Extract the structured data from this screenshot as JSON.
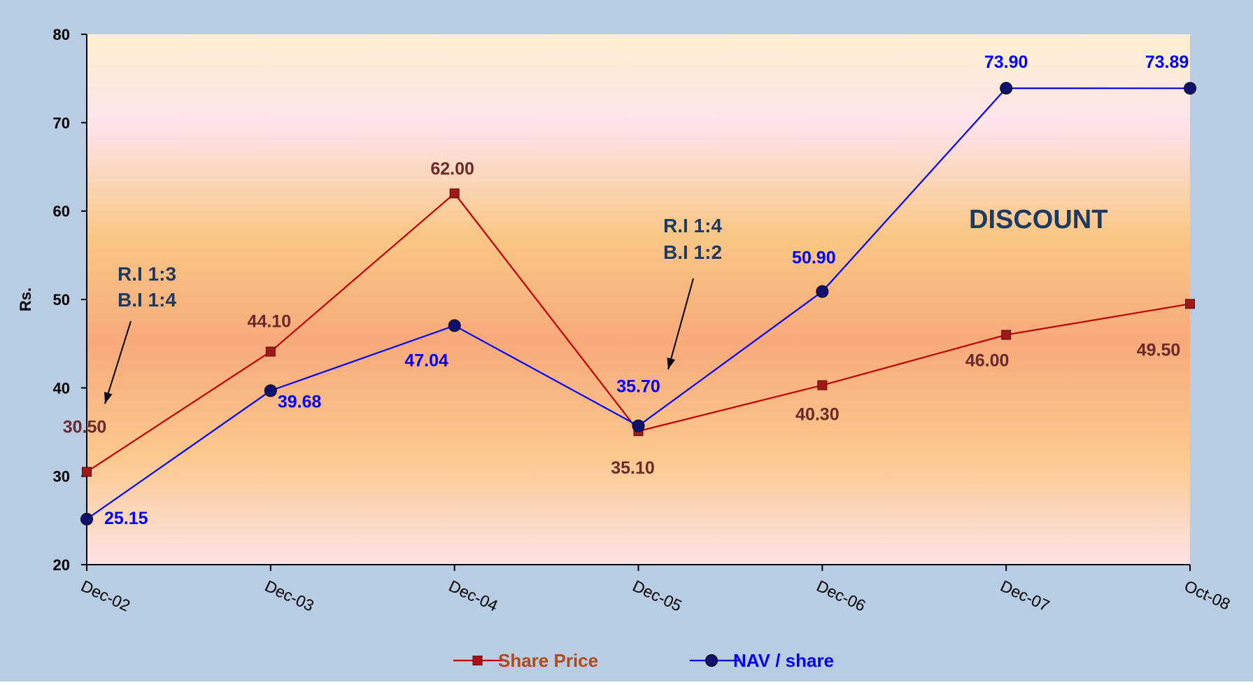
{
  "chart_data": {
    "type": "line",
    "categories": [
      "Dec-02",
      "Dec-03",
      "Dec-04",
      "Dec-05",
      "Dec-06",
      "Dec-07",
      "Oct-08"
    ],
    "ylabel": "Rs.",
    "ylim": [
      20,
      80
    ],
    "yticks": [
      "20",
      "30",
      "40",
      "50",
      "60",
      "70",
      "80"
    ],
    "grid": false,
    "legend_position": "bottom",
    "series": [
      {
        "name": "Share Price",
        "values": [
          30.5,
          44.1,
          62.0,
          35.1,
          40.3,
          46.0,
          49.5
        ],
        "labels": [
          "30.50",
          "44.10",
          "62.00",
          "35.10",
          "40.30",
          "46.00",
          "49.50"
        ],
        "color": "#c00000",
        "marker_color": "#a01818",
        "label_color": "#6b2a2a",
        "marker": "square"
      },
      {
        "name": "NAV / share",
        "values": [
          25.15,
          39.68,
          47.04,
          35.7,
          50.9,
          73.9,
          73.89
        ],
        "labels": [
          "25.15",
          "39.68",
          "47.04",
          "35.70",
          "50.90",
          "73.90",
          "73.89"
        ],
        "color": "#0000ff",
        "marker_color": "#10106e",
        "label_color": "#0000ff",
        "marker": "circle"
      }
    ],
    "annotations": [
      {
        "lines": [
          "R.I 1:3",
          "B.I 1:4"
        ]
      },
      {
        "lines": [
          "R.I 1:4",
          "B.I 1:2"
        ]
      },
      {
        "lines": [
          "DISCOUNT"
        ]
      }
    ],
    "colors": {
      "outer_background": "#b8cce4",
      "annotation_text": "#1f3a5f"
    }
  }
}
